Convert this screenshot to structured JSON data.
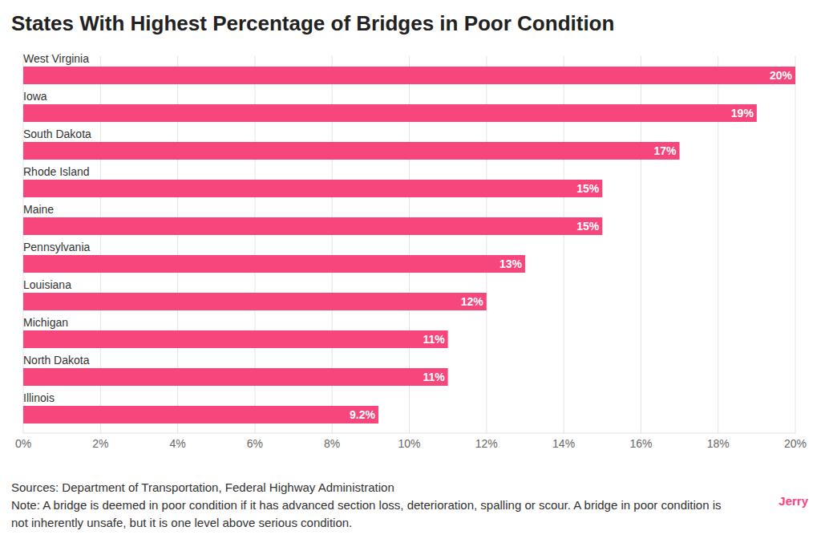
{
  "chart_data": {
    "type": "bar",
    "orientation": "horizontal",
    "title": "States With Highest Percentage of Bridges in Poor Condition",
    "categories": [
      "West Virginia",
      "Iowa",
      "South Dakota",
      "Rhode Island",
      "Maine",
      "Pennsylvania",
      "Louisiana",
      "Michigan",
      "North Dakota",
      "Illinois"
    ],
    "values": [
      20,
      19,
      17,
      15,
      15,
      13,
      12,
      11,
      11,
      9.2
    ],
    "value_labels": [
      "20%",
      "19%",
      "17%",
      "15%",
      "15%",
      "13%",
      "12%",
      "11%",
      "11%",
      "9.2%"
    ],
    "data_labels": true,
    "color": "#f7467c",
    "xlim": [
      0,
      20
    ],
    "xticks": [
      {
        "value": 0,
        "label": "0%"
      },
      {
        "value": 2,
        "label": "2%"
      },
      {
        "value": 4,
        "label": "4%"
      },
      {
        "value": 6,
        "label": "6%"
      },
      {
        "value": 8,
        "label": "8%"
      },
      {
        "value": 10,
        "label": "10%"
      },
      {
        "value": 12,
        "label": "12%"
      },
      {
        "value": 14,
        "label": "14%"
      },
      {
        "value": 16,
        "label": "16%"
      },
      {
        "value": 18,
        "label": "18%"
      },
      {
        "value": 20,
        "label": "20%"
      }
    ],
    "grid": true,
    "source": "Sources: Department of Transportation, Federal Highway Administration",
    "note": "Note: A bridge is deemed in poor condition if it has advanced section loss, deterioration, spalling or scour. A bridge in poor condition is not inherently unsafe, but it is one level above serious condition.",
    "brand": "Jerry"
  }
}
